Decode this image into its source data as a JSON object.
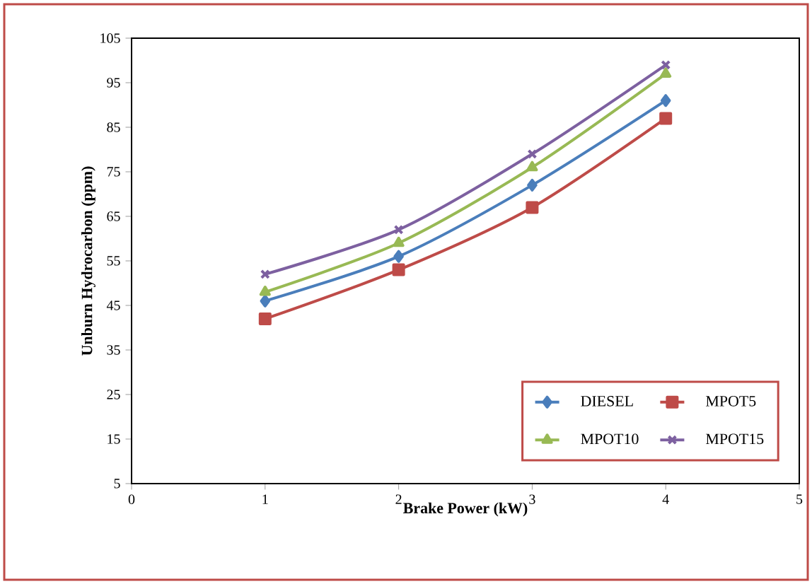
{
  "chart_data": {
    "type": "line",
    "xlabel": "Brake Power (kW)",
    "ylabel": "Unburn Hydrocarbon (ppm)",
    "x": [
      1,
      2,
      3,
      4
    ],
    "series": [
      {
        "name": "DIESEL",
        "color": "#4a7ebb",
        "marker": "diamond",
        "values": [
          46,
          56,
          72,
          91
        ]
      },
      {
        "name": "MPOT5",
        "color": "#be4b48",
        "marker": "square",
        "values": [
          42,
          53,
          67,
          87
        ]
      },
      {
        "name": "MPOT10",
        "color": "#98b954",
        "marker": "triangle",
        "values": [
          48,
          59,
          76,
          97
        ]
      },
      {
        "name": "MPOT15",
        "color": "#7d60a0",
        "marker": "cross",
        "values": [
          52,
          62,
          79,
          99
        ]
      }
    ],
    "xlim": [
      0,
      5
    ],
    "xticks": [
      0,
      1,
      2,
      3,
      4,
      5
    ],
    "ylim": [
      5,
      105
    ],
    "yticks": [
      5,
      15,
      25,
      35,
      45,
      55,
      65,
      75,
      85,
      95,
      105
    ],
    "grid": false,
    "legend": "bottom right",
    "line_style": "solid"
  }
}
